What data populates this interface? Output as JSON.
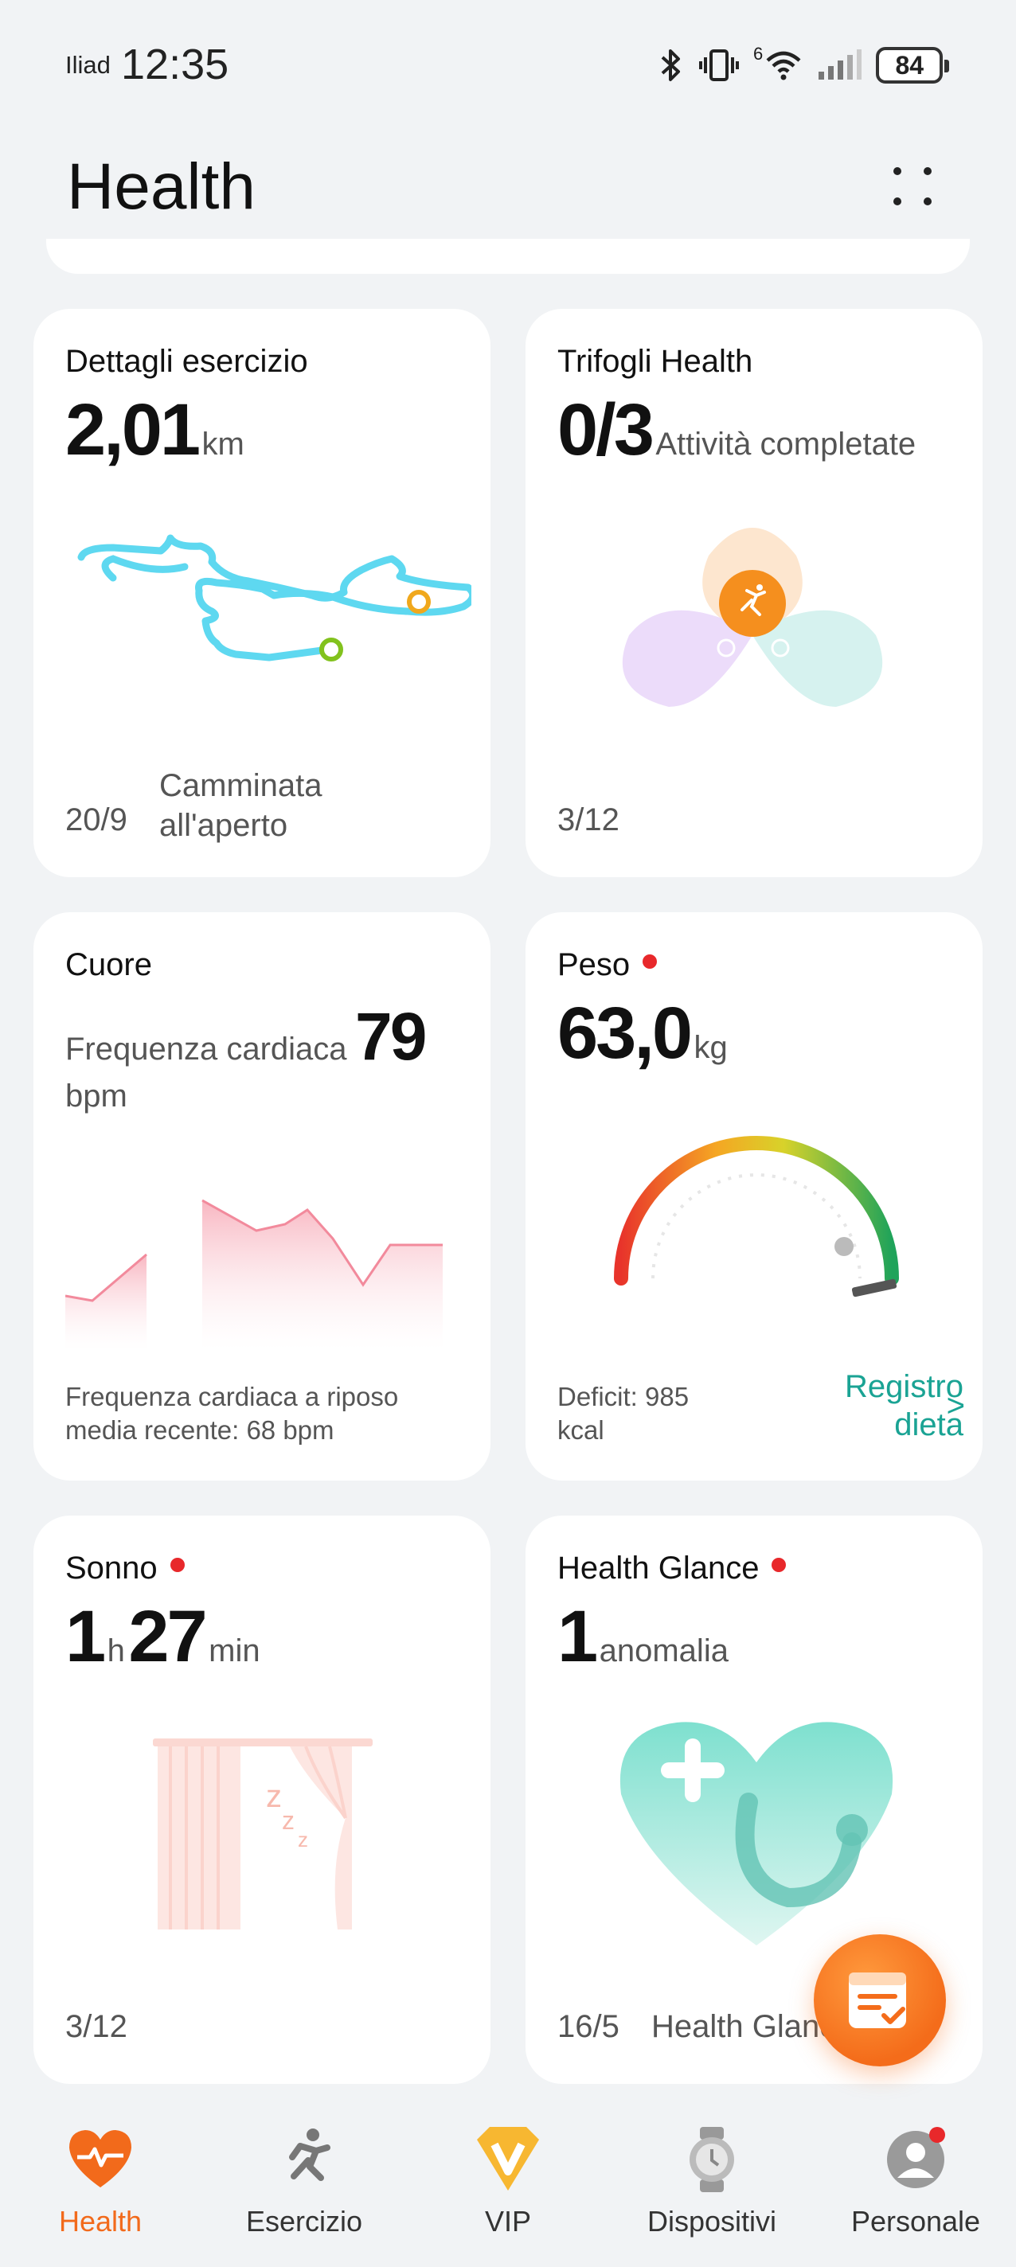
{
  "status": {
    "carrier": "Iliad",
    "time": "12:35",
    "battery": "84",
    "network_label": "6"
  },
  "header": {
    "title": "Health"
  },
  "cards": {
    "exercise": {
      "title": "Dettagli esercizio",
      "value": "2,01",
      "unit": "km",
      "date": "20/9",
      "activity_line1": "Camminata",
      "activity_line2": "all'aperto"
    },
    "trefoil": {
      "title": "Trifogli Health",
      "value": "0/3",
      "unit": "Attività completate",
      "date": "3/12"
    },
    "heart": {
      "title": "Cuore",
      "label": "Frequenza cardiaca",
      "value": "79",
      "unit": "bpm",
      "foot_line1": "Frequenza cardiaca a riposo",
      "foot_line2": "media recente: 68 bpm"
    },
    "weight": {
      "title": "Peso",
      "value": "63,0",
      "unit": "kg",
      "deficit_line1": "Deficit: 985",
      "deficit_line2": "kcal",
      "link_line1": "Registro",
      "link_line2": "dieta",
      "link_arrow": ">"
    },
    "sleep": {
      "title": "Sonno",
      "hours": "1",
      "h_unit": "h",
      "minutes": "27",
      "min_unit": "min",
      "date": "3/12"
    },
    "glance": {
      "title": "Health Glance",
      "value": "1",
      "unit": "anomalia",
      "date": "16/5",
      "source": "Health Glance"
    }
  },
  "tabs": [
    {
      "label": "Health",
      "active": true
    },
    {
      "label": "Esercizio",
      "active": false
    },
    {
      "label": "VIP",
      "active": false
    },
    {
      "label": "Dispositivi",
      "active": false
    },
    {
      "label": "Personale",
      "active": false
    }
  ],
  "colors": {
    "accent": "#f26a1b",
    "teal": "#1aa394",
    "alert": "#e8282b"
  }
}
